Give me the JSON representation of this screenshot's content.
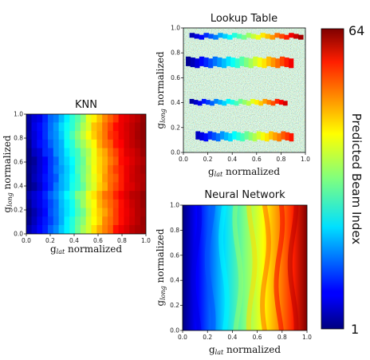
{
  "chart_data": [
    {
      "type": "heatmap",
      "panel": "knn",
      "title": "KNN",
      "xlabel": "g_lat normalized",
      "xlabel_base": "g",
      "xlabel_sub": "lat",
      "xlabel_rest": " normalized",
      "ylabel": "g_long normalized",
      "ylabel_base": "g",
      "ylabel_sub": "long",
      "ylabel_rest": " normalized",
      "xlim": [
        0,
        1
      ],
      "ylim": [
        0,
        1
      ],
      "xticks": [
        "0.0",
        "0.2",
        "0.4",
        "0.6",
        "0.8",
        "1.0"
      ],
      "yticks": [
        "0.0",
        "0.2",
        "0.4",
        "0.6",
        "0.8",
        "1.0"
      ],
      "z_range": [
        1,
        64
      ],
      "z_at_x": [
        [
          0.0,
          1
        ],
        [
          0.2,
          14
        ],
        [
          0.4,
          28
        ],
        [
          0.6,
          44
        ],
        [
          0.8,
          57
        ],
        [
          1.0,
          63
        ]
      ]
    },
    {
      "type": "heatmap",
      "panel": "lookup-table",
      "title": "Lookup Table",
      "xlabel": "g_lat normalized",
      "xlabel_base": "g",
      "xlabel_sub": "lat",
      "xlabel_rest": " normalized",
      "ylabel": "g_long normalized",
      "ylabel_base": "g",
      "ylabel_sub": "long",
      "ylabel_rest": " normalized",
      "xlim": [
        0,
        1
      ],
      "ylim": [
        0,
        1
      ],
      "xticks": [
        "0.0",
        "0.2",
        "0.4",
        "0.6",
        "0.8",
        "1.0"
      ],
      "yticks": [
        "0.0",
        "0.2",
        "0.4",
        "0.6",
        "0.8",
        "1.0"
      ],
      "z_range": [
        1,
        64
      ],
      "background": "noise",
      "bands": [
        {
          "y": [
            0.05,
            0.17
          ],
          "z_at_x": [
            [
              0.1,
              4
            ],
            [
              0.5,
              30
            ],
            [
              0.9,
              56
            ]
          ]
        },
        {
          "y": [
            0.36,
            0.43
          ],
          "z_at_x": [
            [
              0.05,
              2
            ],
            [
              0.45,
              30
            ],
            [
              0.85,
              60
            ]
          ]
        },
        {
          "y": [
            0.63,
            0.77
          ],
          "z_at_x": [
            [
              0.02,
              1
            ],
            [
              0.45,
              28
            ],
            [
              0.9,
              58
            ]
          ]
        },
        {
          "y": [
            0.89,
            0.96
          ],
          "z_at_x": [
            [
              0.05,
              3
            ],
            [
              0.5,
              32
            ],
            [
              0.98,
              63
            ]
          ]
        }
      ]
    },
    {
      "type": "heatmap",
      "panel": "neural-network",
      "title": "Neural Network",
      "xlabel": "g_lat normalized",
      "xlabel_base": "g",
      "xlabel_sub": "lat",
      "xlabel_rest": " normalized",
      "ylabel": "g_long normalized",
      "ylabel_base": "g",
      "ylabel_sub": "long",
      "ylabel_rest": " normalized",
      "xlim": [
        0,
        1
      ],
      "ylim": [
        0,
        1
      ],
      "xticks": [
        "0.0",
        "0.2",
        "0.4",
        "0.6",
        "0.8",
        "1.0"
      ],
      "yticks": [
        "0.0",
        "0.2",
        "0.4",
        "0.6",
        "0.8",
        "1.0"
      ],
      "z_range": [
        1,
        64
      ],
      "z_at_x": [
        [
          0.0,
          1
        ],
        [
          0.2,
          12
        ],
        [
          0.4,
          30
        ],
        [
          0.6,
          46
        ],
        [
          0.8,
          58
        ],
        [
          1.0,
          64
        ]
      ]
    }
  ],
  "colorbar": {
    "label": "Predicted Beam Index",
    "min_label": "1",
    "max_label": "64",
    "colormap": "jet"
  }
}
